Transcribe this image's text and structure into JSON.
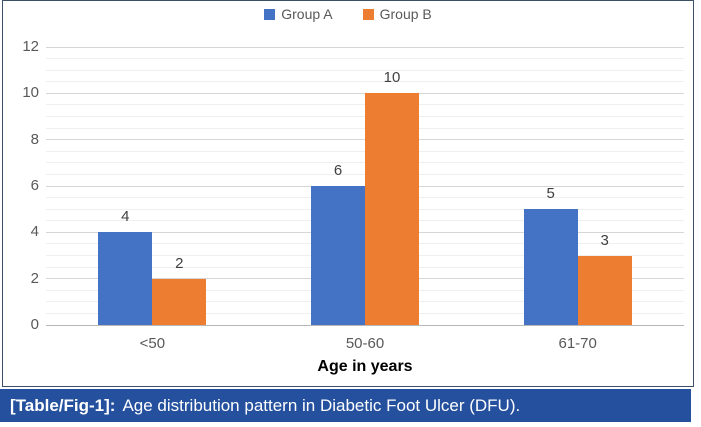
{
  "chart_data": {
    "type": "bar",
    "categories": [
      "<50",
      "50-60",
      "61-70"
    ],
    "series": [
      {
        "name": "Group A",
        "color": "#4472C4",
        "values": [
          4,
          6,
          5
        ]
      },
      {
        "name": "Group B",
        "color": "#ED7D31",
        "values": [
          2,
          10,
          3
        ]
      }
    ],
    "xlabel": "Age in years",
    "ylabel": "",
    "ylim": [
      0,
      12
    ],
    "yticks": [
      0,
      2,
      4,
      6,
      8,
      10,
      12
    ],
    "minor_grid_step": 0.5,
    "grid": true,
    "legend_position": "top",
    "data_labels": true
  },
  "caption": {
    "label": "[Table/Fig-1]:",
    "text": "Age distribution pattern in Diabetic Foot Ulcer (DFU).",
    "background": "#24509E"
  },
  "colors": {
    "frame_border": "#3d5068",
    "major_gridline": "#d6d6d6",
    "minor_gridline": "#efefef",
    "bar_blue": "#4472C4",
    "bar_orange": "#ED7D31"
  }
}
